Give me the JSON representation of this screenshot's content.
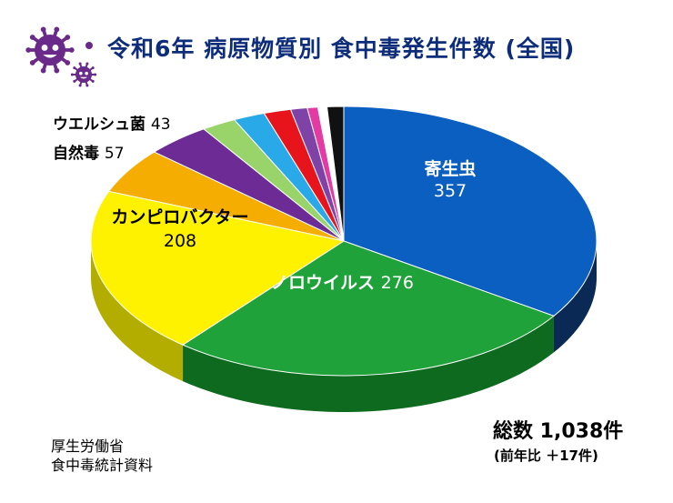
{
  "title": "令和6年 病原物質別 食中毒発生件数 (全国)",
  "source": [
    "厚生労働省",
    "食中毒統計資料"
  ],
  "total": {
    "label": "総数 1,038件",
    "diff": "(前年比 ＋17件)"
  },
  "colors": {
    "title": "#0d2c7a",
    "virus": "#6a2a8a"
  },
  "icons": [
    "virus-icon",
    "small-virus-icon"
  ],
  "chart_data": {
    "type": "pie",
    "style": "3d",
    "start_angle_deg": 0,
    "slices": [
      {
        "name": "寄生虫",
        "value": "357",
        "color": "#0a5fc0",
        "side": "#0a2a55"
      },
      {
        "name": "ノロウイルス",
        "value": "276",
        "color": "#1fa23a",
        "side": "#0d6a1e"
      },
      {
        "name": "カンピロバクター",
        "value": "208",
        "color": "#fff200",
        "side": "#b3ad00"
      },
      {
        "name": "自然毒",
        "value": "57",
        "color": "#f4ad00",
        "side": "#a87600"
      },
      {
        "name": "ウエルシュ菌",
        "value": "43",
        "color": "#6d2b96",
        "side": "#3d1656"
      },
      {
        "name": "",
        "value": "23",
        "color": "#98d46a",
        "side": "#5d8d3c"
      },
      {
        "name": "",
        "value": "21",
        "color": "#29a9e8",
        "side": "#1a6e98"
      },
      {
        "name": "",
        "value": "18",
        "color": "#e8141c",
        "side": "#8e0a0f"
      },
      {
        "name": "",
        "value": "11",
        "color": "#7f43a8",
        "side": "#4a2566"
      },
      {
        "name": "",
        "value": "7",
        "color": "#e23ba4",
        "side": "#8e2567"
      },
      {
        "name": "",
        "value": "6",
        "color": "#ffffff",
        "side": "#9a9a9a"
      },
      {
        "name": "",
        "value": "11",
        "color": "#111111",
        "side": "#000000"
      }
    ]
  }
}
